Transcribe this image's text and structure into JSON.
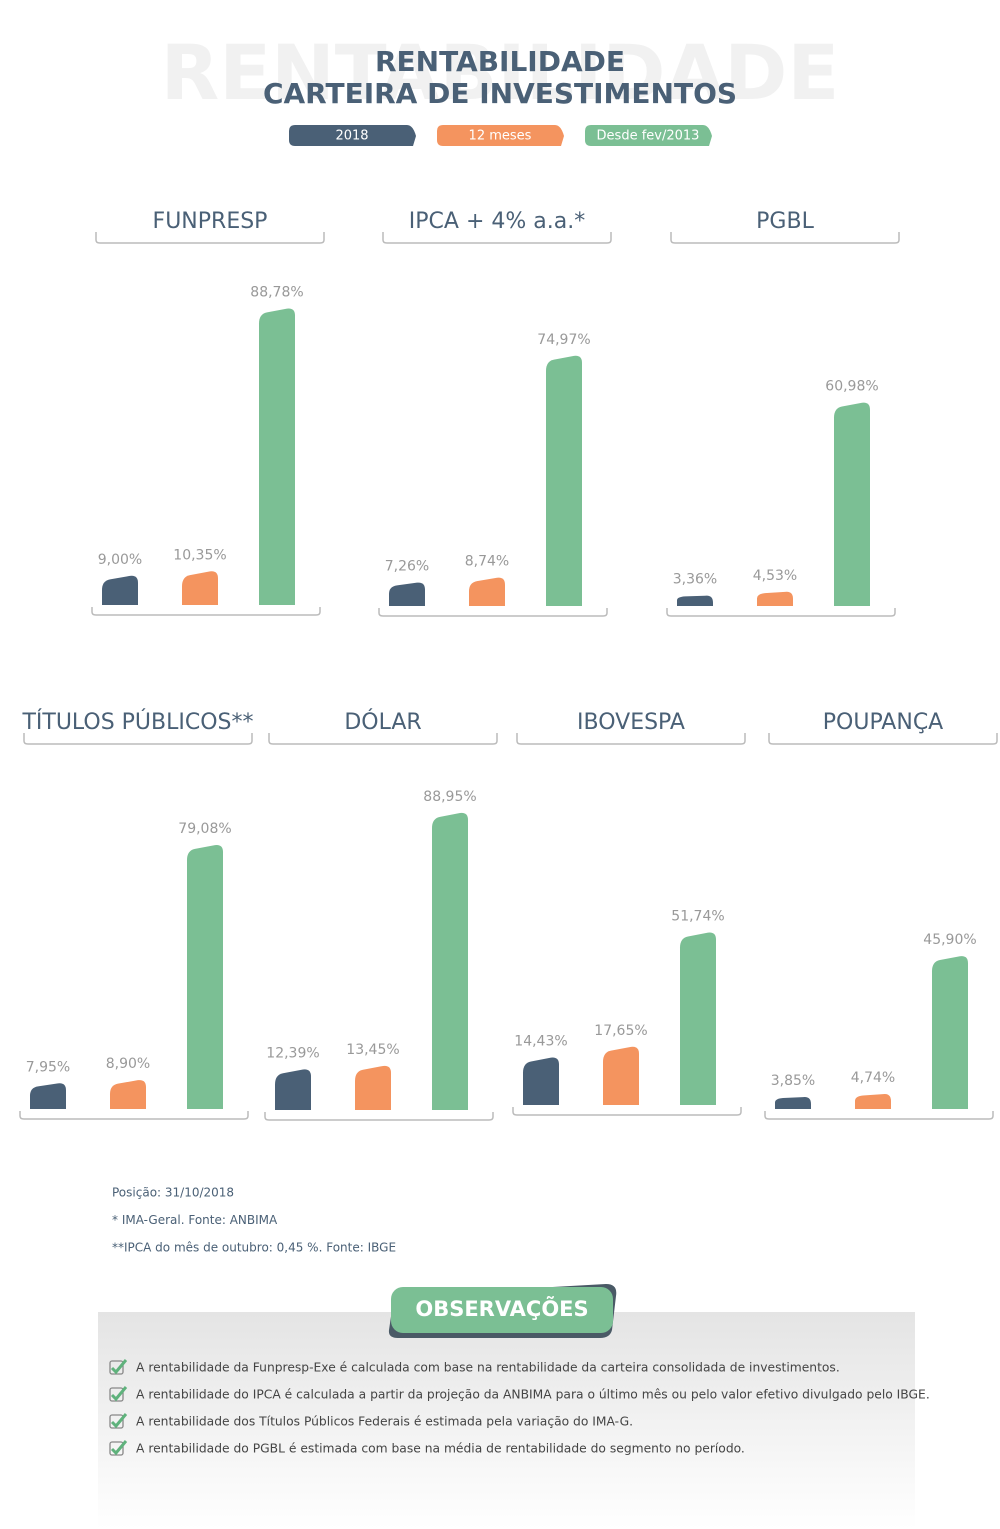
{
  "watermark": "RENTABILIDADE",
  "title": [
    "RENTABILIDADE",
    "CARTEIRA DE INVESTIMENTOS"
  ],
  "legend": [
    {
      "name": "2018",
      "color": "#4a6076"
    },
    {
      "name": "12 meses",
      "color": "#f4945f"
    },
    {
      "name": "Desde fev/2013",
      "color": "#7bbf94"
    }
  ],
  "chart_data": [
    {
      "type": "bar",
      "title": "FUNPRESP",
      "values": [
        9.0,
        10.35,
        88.78
      ],
      "value_labels": [
        "9,00%",
        "10,35%",
        "88,78%"
      ]
    },
    {
      "type": "bar",
      "title": "IPCA + 4% a.a.*",
      "values": [
        7.26,
        8.74,
        74.97
      ],
      "value_labels": [
        "7,26%",
        "8,74%",
        "74,97%"
      ]
    },
    {
      "type": "bar",
      "title": "PGBL",
      "values": [
        3.36,
        4.53,
        60.98
      ],
      "value_labels": [
        "3,36%",
        "4,53%",
        "60,98%"
      ]
    },
    {
      "type": "bar",
      "title": "TÍTULOS PÚBLICOS**",
      "values": [
        7.95,
        8.9,
        79.08
      ],
      "value_labels": [
        "7,95%",
        "8,90%",
        "79,08%"
      ]
    },
    {
      "type": "bar",
      "title": "DÓLAR",
      "values": [
        12.39,
        13.45,
        88.95
      ],
      "value_labels": [
        "12,39%",
        "13,45%",
        "88,95%"
      ]
    },
    {
      "type": "bar",
      "title": "IBOVESPA",
      "values": [
        14.43,
        17.65,
        51.74
      ],
      "value_labels": [
        "14,43%",
        "17,65%",
        "51,74%"
      ]
    },
    {
      "type": "bar",
      "title": "POUPANÇA",
      "values": [
        3.85,
        4.74,
        45.9
      ],
      "value_labels": [
        "3,85%",
        "4,74%",
        "45,90%"
      ]
    }
  ],
  "notes": [
    "Posição: 31/10/2018",
    "* IMA-Geral. Fonte: ANBIMA",
    "**IPCA do mês de outubro: 0,45 %. Fonte: IBGE"
  ],
  "observations": {
    "title": "OBSERVAÇÕES",
    "items": [
      "A rentabilidade da Funpresp-Exe é calculada com base na rentabilidade da carteira consolidada de investimentos.",
      "A rentabilidade do IPCA é calculada a partir da projeção da ANBIMA para o último mês ou pelo valor efetivo divulgado pelo IBGE.",
      "A rentabilidade dos Títulos Públicos Federais é estimada pela variação do IMA-G.",
      "A rentabilidade do PGBL é estimada com base na média de rentabilidade do segmento no período."
    ]
  }
}
